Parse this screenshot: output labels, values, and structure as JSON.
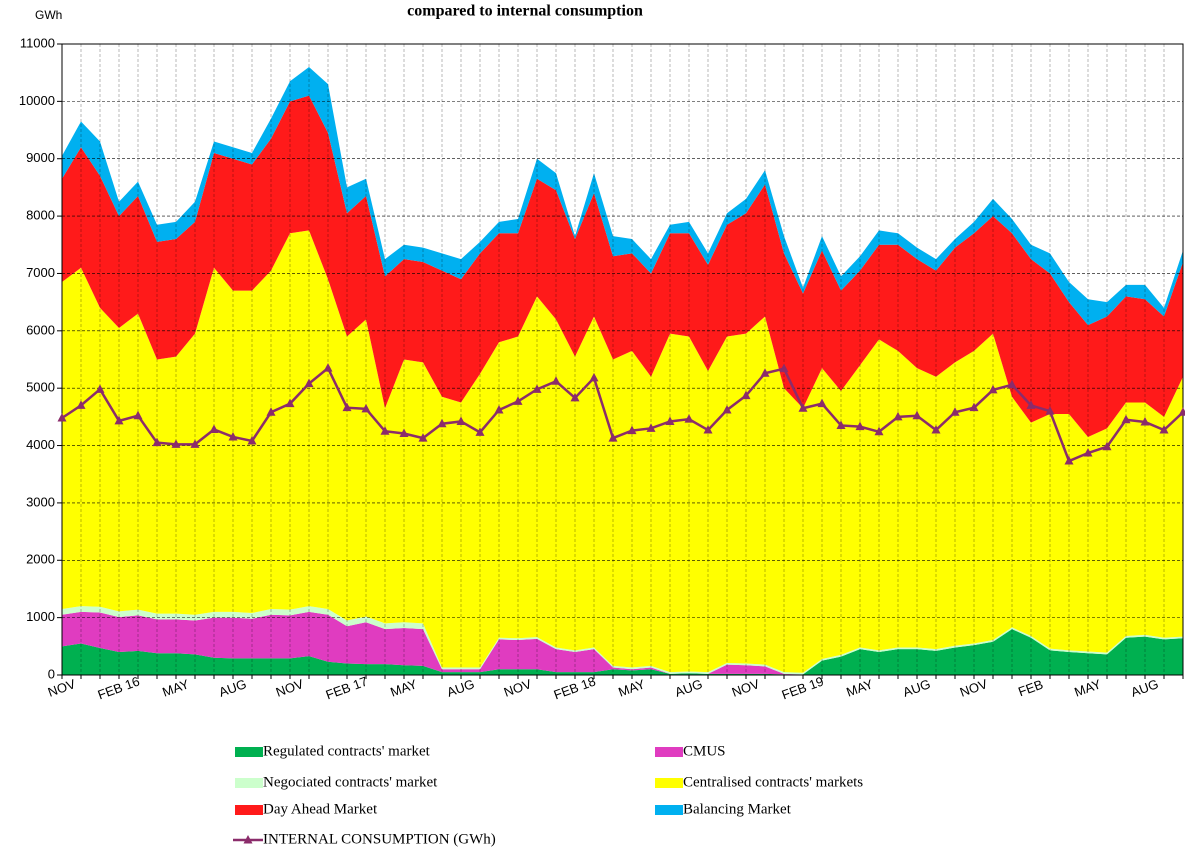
{
  "chart_data": {
    "type": "area",
    "stacked": true,
    "title": "compared  to  internal  consumption",
    "y_unit": "GWh",
    "categories": [
      "NOV",
      null,
      null,
      "FEB 16",
      null,
      null,
      "MAY",
      null,
      null,
      "AUG",
      null,
      null,
      "NOV",
      null,
      null,
      "FEB 17",
      null,
      null,
      "MAY",
      null,
      null,
      "AUG",
      null,
      null,
      "NOV",
      null,
      null,
      "FEB 18",
      null,
      null,
      "MAY",
      null,
      null,
      "AUG",
      null,
      null,
      "NOV",
      null,
      null,
      "FEB 19",
      null,
      null,
      "MAY",
      null,
      null,
      "AUG",
      null,
      null,
      "NOV",
      null,
      null,
      "FEB",
      null,
      null,
      "MAY",
      null,
      null,
      "AUG",
      null,
      null
    ],
    "ylim": [
      0,
      11000
    ],
    "yticks": [
      0,
      1000,
      2000,
      3000,
      4000,
      5000,
      6000,
      7000,
      8000,
      9000,
      10000,
      11000
    ],
    "grid": true,
    "series": [
      {
        "name": "Regulated contracts' market",
        "color": "#00b050",
        "values": [
          500,
          550,
          470,
          400,
          420,
          380,
          380,
          360,
          300,
          290,
          290,
          290,
          290,
          330,
          230,
          200,
          190,
          190,
          170,
          160,
          50,
          50,
          50,
          100,
          100,
          100,
          50,
          50,
          50,
          100,
          80,
          100,
          20,
          30,
          20,
          20,
          20,
          20,
          10,
          10,
          250,
          320,
          450,
          400,
          450,
          450,
          420,
          480,
          520,
          580,
          800,
          650,
          430,
          400,
          380,
          360,
          650,
          670,
          620,
          640
        ]
      },
      {
        "name": "CMUS",
        "color": "#e03cc0",
        "values": [
          550,
          550,
          620,
          610,
          620,
          590,
          590,
          590,
          700,
          710,
          690,
          760,
          750,
          770,
          820,
          650,
          730,
          610,
          650,
          640,
          50,
          50,
          50,
          520,
          510,
          530,
          400,
          350,
          400,
          30,
          20,
          30,
          0,
          0,
          0,
          160,
          150,
          130,
          10,
          0,
          0,
          0,
          0,
          0,
          0,
          0,
          0,
          0,
          0,
          0,
          0,
          0,
          0,
          0,
          0,
          0,
          0,
          0,
          0,
          0
        ]
      },
      {
        "name": "Negociated contracts' market",
        "color": "#ccffcc",
        "values": [
          100,
          100,
          100,
          100,
          100,
          100,
          100,
          100,
          100,
          100,
          100,
          100,
          100,
          100,
          100,
          100,
          100,
          100,
          100,
          100,
          30,
          30,
          30,
          30,
          30,
          30,
          30,
          30,
          30,
          30,
          30,
          30,
          30,
          30,
          30,
          30,
          30,
          30,
          30,
          30,
          30,
          30,
          30,
          30,
          30,
          30,
          30,
          30,
          30,
          30,
          30,
          30,
          30,
          30,
          30,
          30,
          30,
          30,
          30,
          30
        ]
      },
      {
        "name": "Centralised contracts' markets",
        "color": "#ffff00",
        "values": [
          5700,
          5900,
          5210,
          4940,
          5160,
          4430,
          4480,
          4900,
          6000,
          5600,
          5620,
          5900,
          6560,
          6550,
          5750,
          4950,
          5180,
          3750,
          4580,
          4550,
          4720,
          4620,
          5120,
          5150,
          5260,
          5940,
          5720,
          5120,
          5770,
          5340,
          5520,
          5040,
          5900,
          5840,
          5250,
          5690,
          5750,
          6070,
          4950,
          4610,
          5070,
          4600,
          4920,
          5420,
          5170,
          4870,
          4750,
          4940,
          5100,
          5340,
          4020,
          3720,
          4090,
          4120,
          3740,
          3910,
          4070,
          4050,
          3850,
          4530
        ]
      },
      {
        "name": "Day Ahead Market",
        "color": "#ff1a1a",
        "values": [
          1800,
          2100,
          2300,
          1950,
          2050,
          2050,
          2050,
          1950,
          2000,
          2300,
          2200,
          2300,
          2300,
          2350,
          2550,
          2150,
          2150,
          2300,
          1750,
          1750,
          2200,
          2150,
          2100,
          1900,
          1800,
          2050,
          2250,
          2050,
          2150,
          1800,
          1700,
          1800,
          1750,
          1800,
          1850,
          1950,
          2100,
          2300,
          2350,
          2000,
          2050,
          1750,
          1650,
          1650,
          1850,
          1900,
          1850,
          2000,
          2050,
          2050,
          2850,
          2850,
          2450,
          1950,
          1950,
          1950,
          1850,
          1800,
          1750,
          2000
        ]
      },
      {
        "name": "Balancing Market",
        "color": "#00b0f0",
        "values": [
          400,
          450,
          600,
          250,
          250,
          300,
          300,
          350,
          200,
          200,
          200,
          350,
          350,
          500,
          850,
          450,
          300,
          300,
          250,
          250,
          300,
          350,
          200,
          200,
          250,
          350,
          300,
          50,
          350,
          350,
          250,
          250,
          150,
          200,
          200,
          200,
          250,
          250,
          300,
          100,
          250,
          250,
          250,
          250,
          200,
          200,
          200,
          150,
          200,
          300,
          250,
          250,
          350,
          350,
          450,
          250,
          200,
          250,
          150,
          200
        ]
      },
      {
        "name": "INTERNAL CONSUMPTION (GWh)",
        "type": "line",
        "color": "#8b2c6b",
        "values": [
          4480,
          4700,
          4980,
          4430,
          4520,
          4050,
          4020,
          4020,
          4280,
          4150,
          4080,
          4580,
          4730,
          5080,
          5350,
          4660,
          4640,
          4250,
          4210,
          4130,
          4380,
          4420,
          4230,
          4620,
          4770,
          4980,
          5120,
          4830,
          5180,
          4130,
          4260,
          4300,
          4420,
          4460,
          4270,
          4620,
          4870,
          5260,
          5340,
          4650,
          4730,
          4350,
          4330,
          4240,
          4500,
          4520,
          4270,
          4580,
          4660,
          4970,
          5060,
          4700,
          4600,
          3730,
          3870,
          3980,
          4450,
          4410,
          4270,
          4580
        ]
      }
    ]
  }
}
